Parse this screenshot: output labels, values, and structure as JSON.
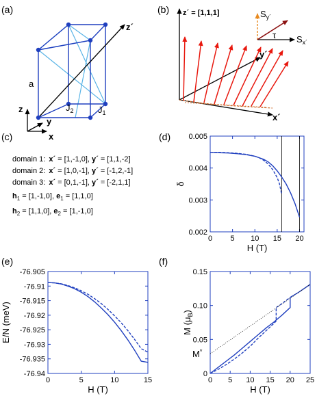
{
  "panels": {
    "a": {
      "label": "(a)",
      "axes": {
        "z": "z",
        "y": "y",
        "x": "x",
        "zp": "z´"
      },
      "edge_label": "a",
      "couplings": {
        "j1": "J",
        "j1_sub": "1",
        "j2": "J",
        "j2_sub": "2"
      },
      "colors": {
        "cube": "#1f3fbf",
        "diag": "#5ab4e6",
        "axis": "#000000",
        "node": "#1f3fbf"
      }
    },
    "b": {
      "label": "(b)",
      "zp_label": "z´ = [1,1,1]",
      "yp_label": "y´",
      "xp_label": "x´",
      "sy_label": "S",
      "sy_sub": "y´",
      "sx_label": "S",
      "sx_sub": "x´",
      "tau_label": "τ",
      "colors": {
        "spin": "#e8180e",
        "sy": "#e88a20",
        "tau": "#8b1010",
        "trace": "#cc6a2a"
      }
    },
    "c": {
      "label": "(c)",
      "domains": [
        {
          "name": "domain 1:",
          "x_sym": "x´",
          "x_val": " = [1,-1,0], ",
          "y_sym": "y´",
          "y_val": " = [1,1,-2]"
        },
        {
          "name": "domain 2:",
          "x_sym": "x´",
          "x_val": " = [1,0,-1], ",
          "y_sym": "y´",
          "y_val": " = [-1,2,-1]"
        },
        {
          "name": "domain 3:",
          "x_sym": "x´",
          "x_val": " = [0,1,-1], ",
          "y_sym": "y´",
          "y_val": " = [-2,1,1]"
        }
      ],
      "hvecs": [
        {
          "h": "h",
          "h_sub": "1",
          "h_val": " = [1,-1,0], ",
          "e": "e",
          "e_sub": "1",
          "e_val": " = [1,1,0]"
        },
        {
          "h": "h",
          "h_sub": "2",
          "h_val": " = [1,1,0], ",
          "e": "e",
          "e_sub": "2",
          "e_val": " = [1,-1,0]"
        }
      ]
    }
  },
  "chart_data": [
    {
      "id": "d",
      "panel_label": "(d)",
      "type": "line",
      "xlabel": "H (T)",
      "ylabel": "δ",
      "xlim": [
        0,
        21
      ],
      "ylim": [
        0.002,
        0.005
      ],
      "xticks": [
        0,
        5,
        10,
        15,
        20
      ],
      "yticks": [
        "0.002",
        "0.003",
        "0.004",
        "0.005"
      ],
      "yticks_num": [
        0.002,
        0.003,
        0.004,
        0.005
      ],
      "vlines": [
        16,
        20
      ],
      "series": [
        {
          "style": "solid",
          "x": [
            0,
            2,
            4,
            6,
            8,
            10,
            12,
            13,
            14,
            15,
            16,
            17,
            18,
            19,
            20
          ],
          "y": [
            0.00449,
            0.00448,
            0.00447,
            0.00445,
            0.00442,
            0.00437,
            0.00427,
            0.00419,
            0.00407,
            0.00391,
            0.00372,
            0.0035,
            0.00322,
            0.00288,
            0.00246
          ]
        },
        {
          "style": "dashed",
          "x": [
            0,
            2,
            4,
            6,
            8,
            10,
            11,
            12,
            13,
            14,
            15,
            15.5,
            16
          ],
          "y": [
            0.00449,
            0.00449,
            0.00448,
            0.00446,
            0.00443,
            0.00437,
            0.00432,
            0.00424,
            0.00412,
            0.00395,
            0.0037,
            0.00351,
            0.00318
          ]
        }
      ]
    },
    {
      "id": "e",
      "panel_label": "(e)",
      "type": "line",
      "xlabel": "H (T)",
      "ylabel": "E/N (meV)",
      "xlim": [
        0,
        15
      ],
      "ylim": [
        -76.94,
        -76.905
      ],
      "xticks": [
        0,
        5,
        10,
        15
      ],
      "yticks": [
        "-76.905",
        "-76.91",
        "-76.915",
        "-76.92",
        "-76.925",
        "-76.93",
        "-76.935",
        "-76.94"
      ],
      "yticks_num": [
        -76.905,
        -76.91,
        -76.915,
        -76.92,
        -76.925,
        -76.93,
        -76.935,
        -76.94
      ],
      "series": [
        {
          "style": "solid",
          "x": [
            0,
            1,
            2,
            3,
            4,
            5,
            6,
            7,
            8,
            9,
            10,
            11,
            12,
            13,
            14,
            15
          ],
          "y": [
            -76.9088,
            -76.9089,
            -76.9093,
            -76.91,
            -76.9109,
            -76.9121,
            -76.9136,
            -76.9154,
            -76.9175,
            -76.9198,
            -76.9224,
            -76.9253,
            -76.9285,
            -76.932,
            -76.9358,
            -76.9362
          ]
        },
        {
          "style": "dashed",
          "x": [
            0,
            1,
            2,
            3,
            4,
            5,
            6,
            7,
            8,
            9,
            10,
            11,
            12,
            13,
            14,
            15
          ],
          "y": [
            -76.9088,
            -76.9089,
            -76.9092,
            -76.9098,
            -76.9106,
            -76.9116,
            -76.9128,
            -76.9143,
            -76.916,
            -76.918,
            -76.9202,
            -76.9226,
            -76.9253,
            -76.9283,
            -76.9315,
            -76.9327
          ]
        }
      ]
    },
    {
      "id": "f",
      "panel_label": "(f)",
      "type": "line",
      "xlabel": "H (T)",
      "ylabel": "M (μ",
      "ylabel_sub": "B",
      "ylabel_end": ")",
      "annotation": "M",
      "annotation_sup": "*",
      "annotation_y": 0.029,
      "xlim": [
        0,
        25
      ],
      "ylim": [
        0,
        0.15
      ],
      "xticks": [
        0,
        5,
        10,
        15,
        20,
        25
      ],
      "yticks": [
        "0",
        "0.05",
        "0.10",
        "0.15"
      ],
      "yticks_num": [
        0,
        0.05,
        0.1,
        0.15
      ],
      "series": [
        {
          "style": "solid",
          "x": [
            0,
            2,
            4,
            6,
            8,
            10,
            12,
            14,
            16,
            18,
            20,
            20,
            22,
            25
          ],
          "y": [
            0,
            0.009,
            0.018,
            0.027,
            0.037,
            0.047,
            0.057,
            0.067,
            0.076,
            0.086,
            0.097,
            0.112,
            0.119,
            0.131
          ]
        },
        {
          "style": "dashed",
          "x": [
            0,
            2,
            4,
            6,
            8,
            10,
            12,
            14,
            16,
            16.5,
            16.5,
            18,
            20
          ],
          "y": [
            0,
            0.006,
            0.013,
            0.021,
            0.03,
            0.04,
            0.052,
            0.063,
            0.074,
            0.077,
            0.097,
            0.103,
            0.112
          ]
        },
        {
          "style": "dotted",
          "x": [
            0,
            25
          ],
          "y": [
            0.029,
            0.131
          ]
        }
      ]
    }
  ]
}
